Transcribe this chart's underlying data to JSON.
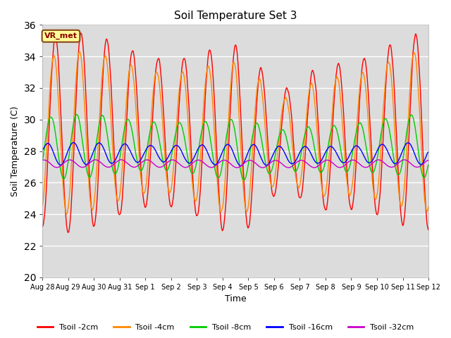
{
  "title": "Soil Temperature Set 3",
  "xlabel": "Time",
  "ylabel": "Soil Temperature (C)",
  "ylim": [
    20,
    36
  ],
  "yticks": [
    20,
    22,
    24,
    26,
    28,
    30,
    32,
    34,
    36
  ],
  "colors": {
    "Tsoil -2cm": "#ff0000",
    "Tsoil -4cm": "#ff8800",
    "Tsoil -8cm": "#00cc00",
    "Tsoil -16cm": "#0000ff",
    "Tsoil -32cm": "#cc00cc"
  },
  "background_color": "#dcdcdc",
  "fig_background": "#ffffff",
  "annotation_text": "VR_met",
  "annotation_bg": "#ffff99",
  "annotation_border": "#8B4513",
  "n_days": 15,
  "n_points": 720,
  "mean_2": 29.0,
  "amp_2": 5.5,
  "phase_2": -1.57,
  "mean_4": 29.0,
  "amp_4": 4.5,
  "phase_4": -1.2,
  "mean_8": 28.2,
  "amp_8": 1.8,
  "phase_8": -0.5,
  "mean_16": 27.8,
  "amp_16": 0.8,
  "phase_16": 0.3,
  "mean_32": 27.2,
  "amp_32": 0.25,
  "phase_32": 1.2,
  "xtick_labels": [
    "Aug 28",
    "Aug 29",
    "Aug 30",
    "Aug 31",
    "Sep 1",
    "Sep 2",
    "Sep 3",
    "Sep 4",
    "Sep 5",
    "Sep 6",
    "Sep 7",
    "Sep 8",
    "Sep 9",
    "Sep 10",
    "Sep 11",
    "Sep 12"
  ]
}
